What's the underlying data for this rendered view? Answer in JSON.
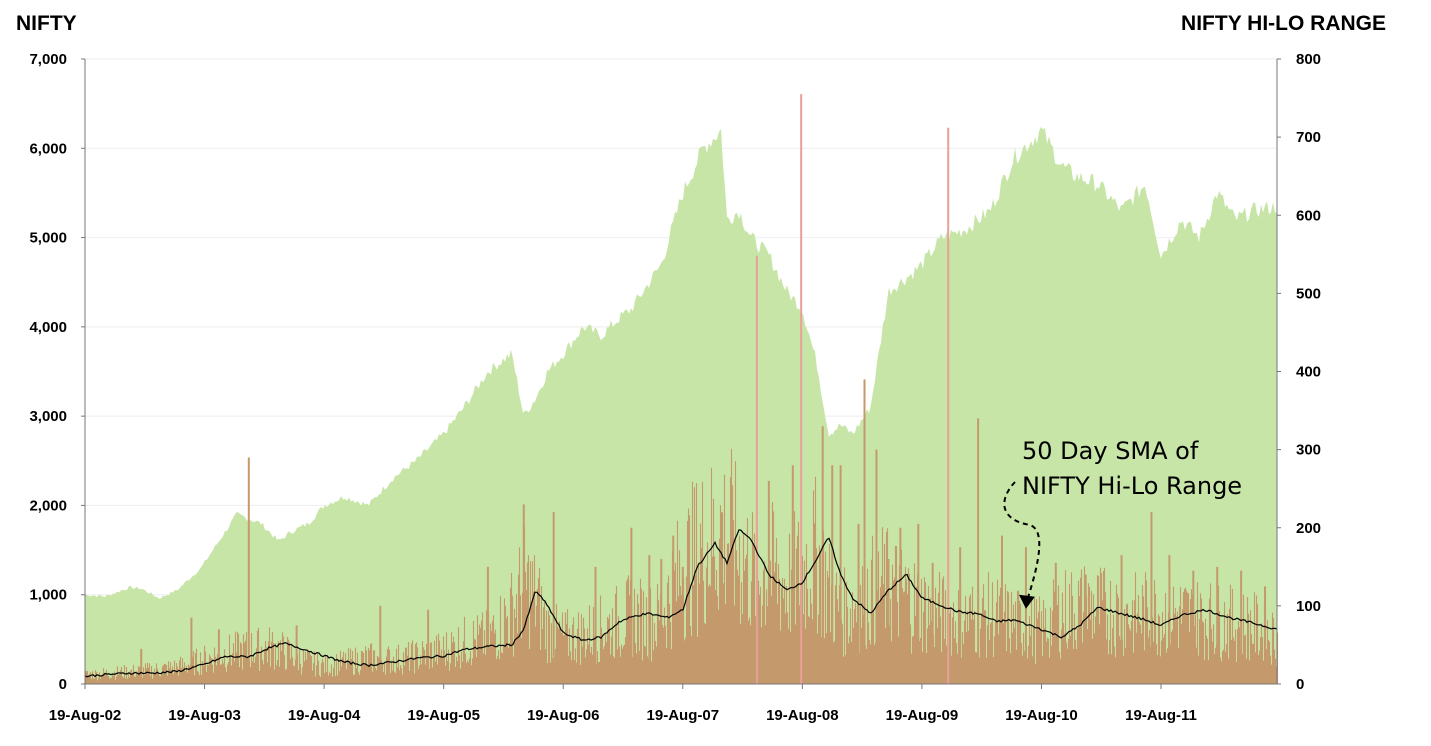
{
  "chart_data": {
    "type": "area",
    "left_axis_title": "NIFTY",
    "right_axis_title": "NIFTY HI-LO RANGE",
    "left_ylim": [
      0,
      7000
    ],
    "right_ylim": [
      0,
      800
    ],
    "left_ticks": [
      "0",
      "1,000",
      "2,000",
      "3,000",
      "4,000",
      "5,000",
      "6,000",
      "7,000"
    ],
    "left_tick_values": [
      0,
      1000,
      2000,
      3000,
      4000,
      5000,
      6000,
      7000
    ],
    "right_ticks": [
      "0",
      "100",
      "200",
      "300",
      "400",
      "500",
      "600",
      "700",
      "800"
    ],
    "right_tick_values": [
      0,
      100,
      200,
      300,
      400,
      500,
      600,
      700,
      800
    ],
    "x_tick_labels": [
      "19-Aug-02",
      "19-Aug-03",
      "19-Aug-04",
      "19-Aug-05",
      "19-Aug-06",
      "19-Aug-07",
      "19-Aug-08",
      "19-Aug-09",
      "19-Aug-10",
      "19-Aug-11"
    ],
    "x_tick_years": [
      2002.63,
      2003.63,
      2004.63,
      2005.63,
      2006.63,
      2007.63,
      2008.63,
      2009.63,
      2010.63,
      2011.63
    ],
    "xlim": [
      2002.63,
      2012.6
    ],
    "grid": true,
    "colors": {
      "nifty": "#c6e5a6",
      "hilo": "#c49a6c",
      "hilo_spike": "#e8a098",
      "sma": "#000000"
    },
    "series": [
      {
        "axis": "left",
        "kind": "area",
        "x": [
          2002.63,
          2002.8,
          2003.0,
          2003.1,
          2003.25,
          2003.4,
          2003.6,
          2003.75,
          2003.9,
          2004.0,
          2004.1,
          2004.25,
          2004.35,
          2004.5,
          2004.63,
          2004.8,
          2005.0,
          2005.2,
          2005.4,
          2005.63,
          2005.8,
          2006.0,
          2006.2,
          2006.3,
          2006.4,
          2006.5,
          2006.63,
          2006.8,
          2006.95,
          2007.1,
          2007.2,
          2007.3,
          2007.45,
          2007.63,
          2007.8,
          2007.95,
          2008.0,
          2008.1,
          2008.2,
          2008.35,
          2008.5,
          2008.63,
          2008.75,
          2008.85,
          2008.95,
          2009.05,
          2009.2,
          2009.35,
          2009.45,
          2009.55,
          2009.63,
          2009.8,
          2010.0,
          2010.2,
          2010.4,
          2010.63,
          2010.8,
          2010.9,
          2011.1,
          2011.3,
          2011.5,
          2011.63,
          2011.8,
          2011.95,
          2012.1,
          2012.25,
          2012.4,
          2012.6
        ],
        "values": [
          1000,
          980,
          1080,
          1070,
          960,
          1050,
          1300,
          1600,
          1900,
          1850,
          1800,
          1600,
          1700,
          1800,
          2000,
          2100,
          2000,
          2300,
          2500,
          2800,
          3100,
          3500,
          3700,
          3000,
          3200,
          3500,
          3700,
          4000,
          3900,
          4100,
          4200,
          4400,
          4700,
          5500,
          6000,
          6200,
          5200,
          5300,
          5000,
          4800,
          4400,
          4200,
          3600,
          2800,
          2900,
          2800,
          3100,
          4400,
          4500,
          4600,
          4700,
          5000,
          5100,
          5300,
          5900,
          6200,
          5800,
          5700,
          5600,
          5300,
          5600,
          4800,
          5200,
          5000,
          5500,
          5200,
          5300,
          5350
        ]
      },
      {
        "axis": "right",
        "kind": "column",
        "x": [
          2002.63,
          2002.8,
          2003.0,
          2003.2,
          2003.4,
          2003.63,
          2003.8,
          2004.0,
          2004.2,
          2004.35,
          2004.5,
          2004.63,
          2004.8,
          2005.0,
          2005.2,
          2005.4,
          2005.63,
          2005.8,
          2006.0,
          2006.2,
          2006.3,
          2006.4,
          2006.5,
          2006.63,
          2006.8,
          2007.0,
          2007.2,
          2007.4,
          2007.5,
          2007.63,
          2007.8,
          2007.9,
          2008.0,
          2008.1,
          2008.25,
          2008.35,
          2008.5,
          2008.63,
          2008.75,
          2008.85,
          2008.95,
          2009.1,
          2009.3,
          2009.45,
          2009.63,
          2009.8,
          2010.0,
          2010.2,
          2010.4,
          2010.63,
          2010.8,
          2011.0,
          2011.2,
          2011.4,
          2011.63,
          2011.8,
          2012.0,
          2012.2,
          2012.4,
          2012.6
        ],
        "values": [
          12,
          14,
          16,
          18,
          22,
          32,
          40,
          45,
          48,
          38,
          28,
          24,
          28,
          34,
          32,
          36,
          44,
          55,
          60,
          95,
          130,
          110,
          70,
          60,
          65,
          75,
          90,
          80,
          110,
          150,
          180,
          190,
          200,
          170,
          140,
          150,
          130,
          150,
          170,
          120,
          90,
          110,
          130,
          120,
          100,
          90,
          85,
          90,
          80,
          70,
          95,
          100,
          95,
          90,
          95,
          90,
          85,
          80,
          75,
          60
        ]
      },
      {
        "axis": "right",
        "kind": "spikes",
        "x": [
          2003.1,
          2003.52,
          2003.75,
          2004.0,
          2004.4,
          2005.1,
          2005.5,
          2006.0,
          2006.3,
          2006.55,
          2006.9,
          2007.2,
          2007.35,
          2007.45,
          2007.55,
          2007.63,
          2007.95,
          2008.05,
          2008.15,
          2008.25,
          2008.35,
          2008.55,
          2008.62,
          2008.8,
          2008.88,
          2008.95,
          2009.1,
          2009.15,
          2009.25,
          2009.35,
          2009.45,
          2009.6,
          2009.72,
          2009.85,
          2009.95,
          2010.1,
          2010.3,
          2010.5,
          2010.75,
          2011.0,
          2011.3,
          2011.55,
          2011.7,
          2011.9,
          2012.1,
          2012.3,
          2012.5
        ],
        "values": [
          45,
          85,
          70,
          290,
          75,
          100,
          95,
          150,
          230,
          220,
          150,
          200,
          165,
          160,
          190,
          150,
          220,
          210,
          145,
          548,
          260,
          280,
          755,
          330,
          280,
          280,
          205,
          390,
          300,
          160,
          200,
          205,
          155,
          712,
          175,
          340,
          190,
          175,
          155,
          140,
          165,
          220,
          165,
          145,
          150,
          145,
          125
        ]
      },
      {
        "name": "50 Day SMA of NIFTY Hi-Lo Range",
        "axis": "right",
        "kind": "line",
        "x": [
          2002.63,
          2002.8,
          2003.0,
          2003.2,
          2003.4,
          2003.63,
          2003.8,
          2004.0,
          2004.15,
          2004.3,
          2004.45,
          2004.63,
          2004.8,
          2005.0,
          2005.2,
          2005.4,
          2005.63,
          2005.8,
          2006.0,
          2006.2,
          2006.3,
          2006.4,
          2006.5,
          2006.63,
          2006.8,
          2006.95,
          2007.1,
          2007.25,
          2007.35,
          2007.5,
          2007.63,
          2007.75,
          2007.9,
          2008.0,
          2008.1,
          2008.2,
          2008.35,
          2008.5,
          2008.63,
          2008.75,
          2008.85,
          2008.95,
          2009.05,
          2009.2,
          2009.35,
          2009.5,
          2009.63,
          2009.8,
          2009.95,
          2010.1,
          2010.25,
          2010.4,
          2010.63,
          2010.8,
          2010.95,
          2011.1,
          2011.3,
          2011.5,
          2011.63,
          2011.8,
          2012.0,
          2012.2,
          2012.4,
          2012.6
        ],
        "values": [
          10,
          12,
          14,
          14,
          16,
          25,
          35,
          35,
          45,
          52,
          45,
          36,
          28,
          24,
          28,
          33,
          36,
          44,
          48,
          50,
          70,
          120,
          100,
          65,
          56,
          60,
          80,
          88,
          90,
          85,
          95,
          150,
          180,
          155,
          198,
          185,
          140,
          120,
          130,
          160,
          188,
          140,
          110,
          90,
          120,
          140,
          110,
          100,
          92,
          90,
          80,
          82,
          70,
          60,
          75,
          98,
          90,
          82,
          75,
          88,
          95,
          85,
          78,
          70
        ]
      }
    ],
    "annotations": [
      {
        "text_line1": "50 Day SMA of",
        "text_line2": "NIFTY Hi-Lo Range",
        "target_x": 2010.5,
        "target_y_right": 95
      }
    ]
  }
}
